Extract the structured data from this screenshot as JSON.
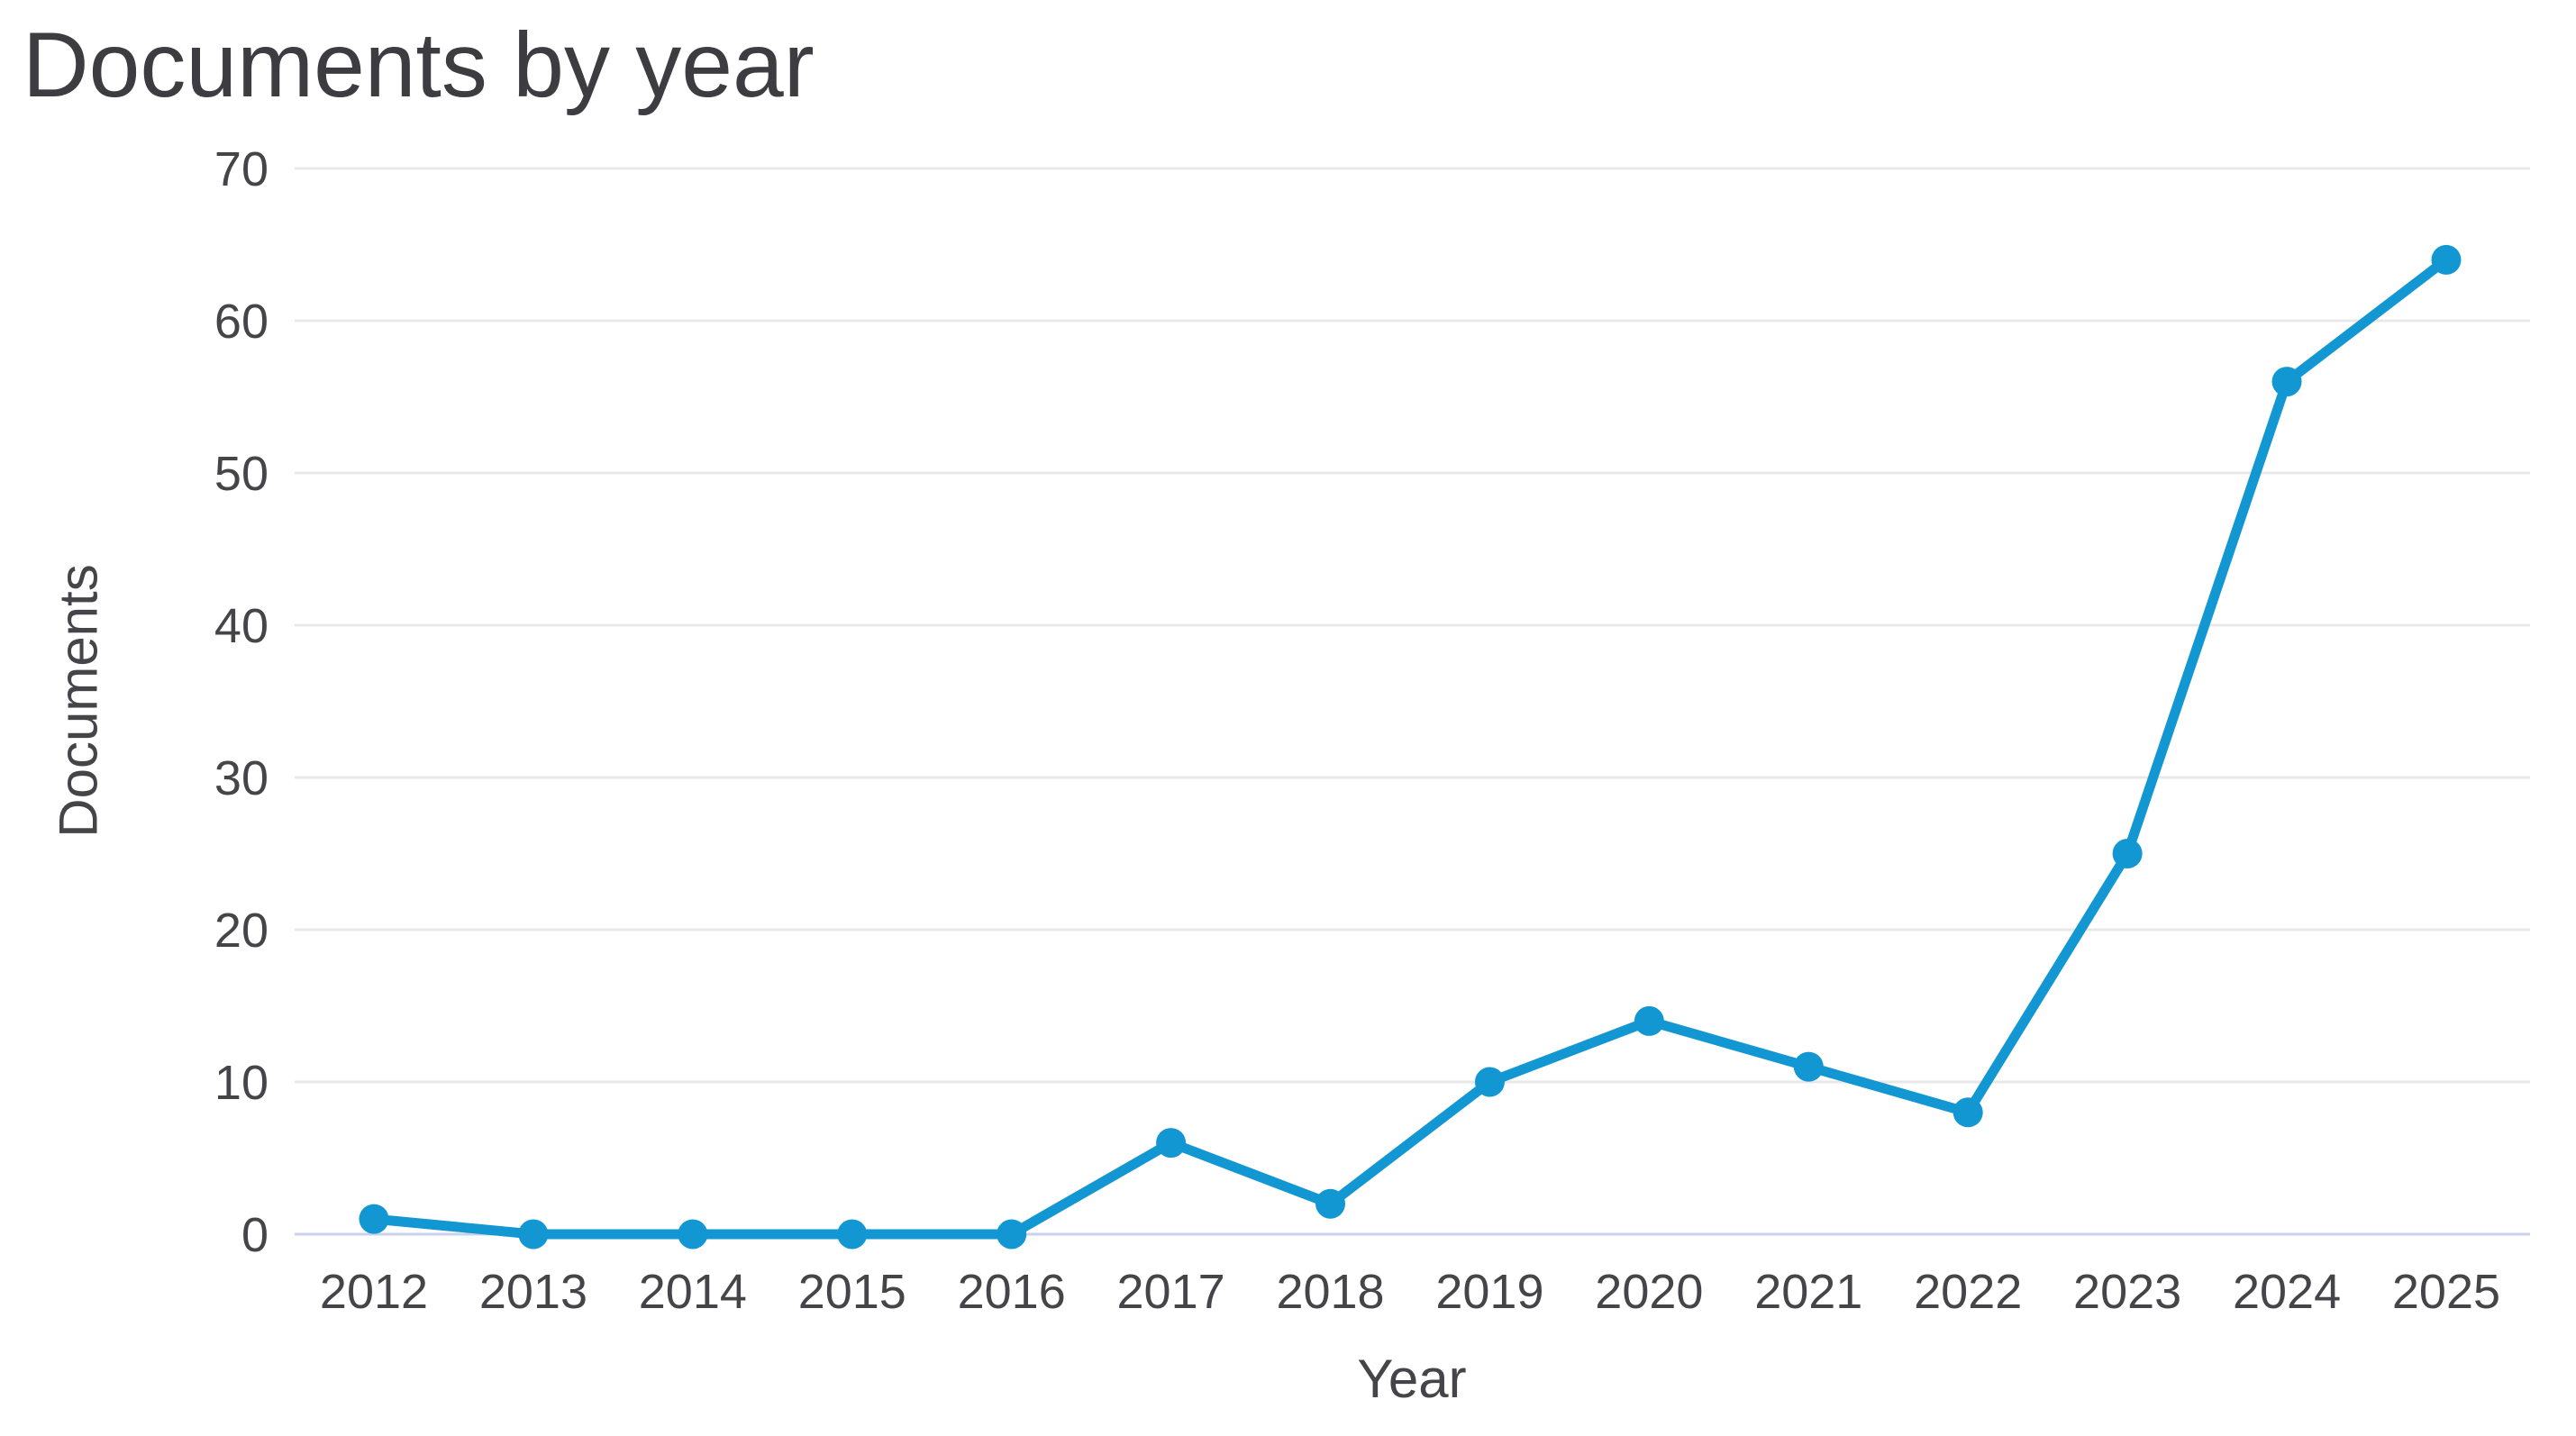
{
  "title": "Documents by year",
  "chart_data": {
    "type": "line",
    "title": "Documents by year",
    "xlabel": "Year",
    "ylabel": "Documents",
    "categories": [
      "2012",
      "2013",
      "2014",
      "2015",
      "2016",
      "2017",
      "2018",
      "2019",
      "2020",
      "2021",
      "2022",
      "2023",
      "2024",
      "2025"
    ],
    "series": [
      {
        "name": "Documents",
        "values": [
          1,
          0,
          0,
          0,
          0,
          6,
          2,
          10,
          14,
          11,
          8,
          25,
          56,
          64
        ]
      }
    ],
    "ylim": [
      0,
      70
    ],
    "yticks": [
      0,
      10,
      20,
      30,
      40,
      50,
      60,
      70
    ],
    "grid": "horizontal",
    "legend_position": "none",
    "colors": {
      "line": "#1297d3",
      "marker": "#1297d3",
      "gridline": "#e8e8e8",
      "zero_axis_line": "#c9d2ea",
      "tick_text": "#454549",
      "title_text": "#3c3c41"
    }
  }
}
